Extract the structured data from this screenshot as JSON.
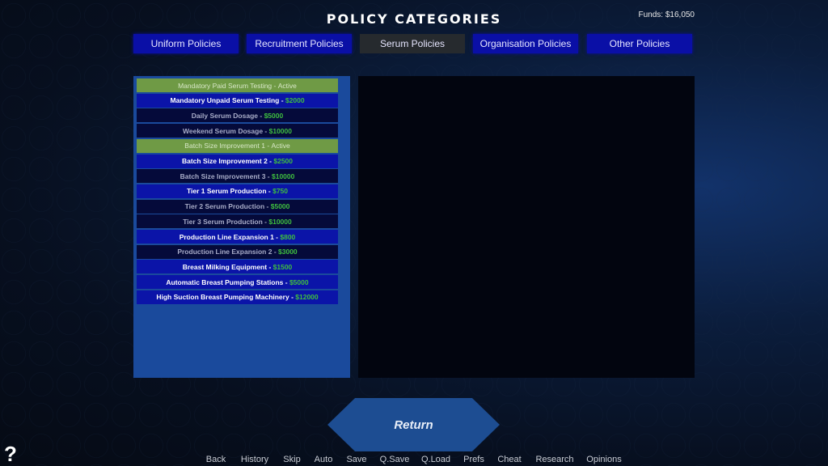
{
  "title": "POLICY CATEGORIES",
  "funds": "Funds: $16,050",
  "tabs": [
    {
      "label": "Uniform Policies",
      "selected": false
    },
    {
      "label": "Recruitment Policies",
      "selected": false
    },
    {
      "label": "Serum Policies",
      "selected": true
    },
    {
      "label": "Organisation Policies",
      "selected": false
    },
    {
      "label": "Other Policies",
      "selected": false
    }
  ],
  "policies": [
    {
      "name": "Mandatory Paid Serum Testing",
      "cost": "Active",
      "state": "active"
    },
    {
      "name": "Mandatory Unpaid Serum Testing",
      "cost": "$2000",
      "state": "avail"
    },
    {
      "name": "Daily Serum Dosage",
      "cost": "$5000",
      "state": "locked"
    },
    {
      "name": "Weekend Serum Dosage",
      "cost": "$10000",
      "state": "locked"
    },
    {
      "name": "Batch Size Improvement 1",
      "cost": "Active",
      "state": "active"
    },
    {
      "name": "Batch Size Improvement 2",
      "cost": "$2500",
      "state": "avail"
    },
    {
      "name": "Batch Size Improvement 3",
      "cost": "$10000",
      "state": "locked"
    },
    {
      "name": "Tier 1 Serum Production",
      "cost": "$750",
      "state": "avail"
    },
    {
      "name": "Tier 2 Serum Production",
      "cost": "$5000",
      "state": "locked"
    },
    {
      "name": "Tier 3 Serum Production",
      "cost": "$10000",
      "state": "locked"
    },
    {
      "name": "Production Line Expansion 1",
      "cost": "$800",
      "state": "avail"
    },
    {
      "name": "Production Line Expansion 2",
      "cost": "$3000",
      "state": "locked"
    },
    {
      "name": "Breast Milking Equipment",
      "cost": "$1500",
      "state": "avail"
    },
    {
      "name": "Automatic Breast Pumping Stations",
      "cost": "$5000",
      "state": "avail"
    },
    {
      "name": "High Suction Breast Pumping Machinery",
      "cost": "$12000",
      "state": "avail"
    }
  ],
  "separator": " - ",
  "return_label": "Return",
  "help_label": "?",
  "quick_menu": [
    "Back",
    "History",
    "Skip",
    "Auto",
    "Save",
    "Q.Save",
    "Q.Load",
    "Prefs",
    "Cheat",
    "Research",
    "Opinions"
  ],
  "colors": {
    "active": "#6f9a45",
    "available": "#0b14a8",
    "locked": "#050a3a",
    "cost": "#3fbf3f",
    "tab": "#0a0fa6",
    "tab_selected": "#262a2e"
  }
}
